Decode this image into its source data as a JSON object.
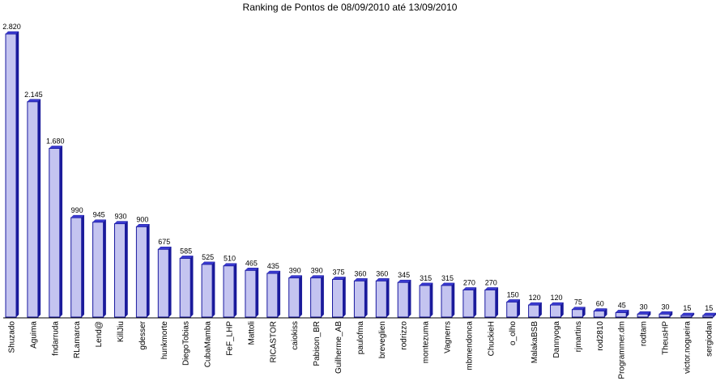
{
  "chart_data": {
    "type": "bar",
    "style": "3d",
    "title": "Ranking de Pontos de 08/09/2010 até 13/09/2010",
    "xlabel": "",
    "ylabel": "",
    "ylim": [
      0,
      2820
    ],
    "grid": false,
    "legend": "none",
    "bar_color": "#c4c4f0",
    "bar_top_color": "#3a3ad0",
    "bar_side_color": "#1a1a9a",
    "categories": [
      "Shuzado",
      "Aguima",
      "fndarruda",
      "RLamarca",
      "Lend@",
      "KillJiu",
      "gdesser",
      "hunkmorte",
      "DiegoTobias",
      "CubaMamba",
      "FeF_LHP",
      "Mattoli",
      "RICASTOR",
      "caiokiss",
      "Pabison_BR",
      "Guilherme_AB",
      "paulofma",
      "breveglien",
      "rodrizzo",
      "montezuma",
      "Vagnerrs",
      "mbmendonca",
      "ChuckieH",
      "o_olho",
      "MalakaBSB",
      "Dannyoga",
      "rjmartins",
      "rod2810",
      "Programmer.dm",
      "rodtam",
      "TheusHP",
      "victor.nogueira",
      "sergiodan"
    ],
    "values": [
      2820,
      2145,
      1680,
      990,
      945,
      930,
      900,
      675,
      585,
      525,
      510,
      465,
      435,
      390,
      390,
      375,
      360,
      360,
      345,
      315,
      315,
      270,
      270,
      150,
      120,
      120,
      75,
      60,
      45,
      30,
      30,
      15,
      15
    ],
    "value_labels": [
      "2.820",
      "2.145",
      "1.680",
      "990",
      "945",
      "930",
      "900",
      "675",
      "585",
      "525",
      "510",
      "465",
      "435",
      "390",
      "390",
      "375",
      "360",
      "360",
      "345",
      "315",
      "315",
      "270",
      "270",
      "150",
      "120",
      "120",
      "75",
      "60",
      "45",
      "30",
      "30",
      "15",
      "15"
    ]
  }
}
